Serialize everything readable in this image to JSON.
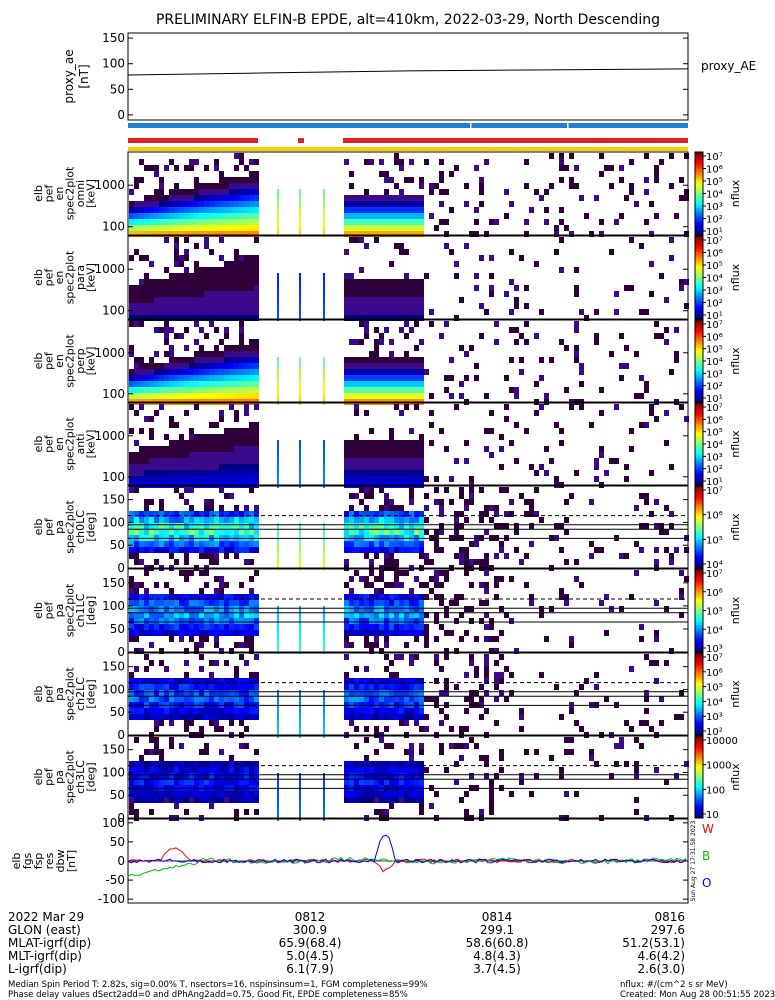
{
  "title": "PRELIMINARY ELFIN-B EPDE, alt=410km, 2022-03-29, North Descending",
  "colors": {
    "bar_blue": "#1e7fd6",
    "bar_red": "#e02020",
    "bar_yellow": "#f5d000",
    "bx_red": "#ff0000",
    "bx_green": "#00c000",
    "bx_blue": "#0000ff"
  },
  "chart_data": [
    {
      "type": "line",
      "panel": "proxy_ae",
      "ylabel_lines": [
        "proxy_ae",
        "[nT]"
      ],
      "right_label": "proxy_AE",
      "ylim": [
        -10,
        160
      ],
      "yticks": [
        "150",
        "100",
        "50",
        "0"
      ],
      "ytick_values": [
        150,
        100,
        50,
        0
      ],
      "x": [
        0,
        0.25,
        0.5,
        0.75,
        1
      ],
      "values": [
        78,
        82,
        86,
        88,
        90
      ]
    },
    {
      "type": "bar",
      "panel": "status_bars"
    },
    {
      "type": "heatmap",
      "panel": "en_omni",
      "ylabel_lines": [
        "elb",
        "pef",
        "en",
        "spec2plot",
        "omni",
        "[keV]"
      ],
      "scale": "log",
      "yticks": [
        "1000",
        "100"
      ],
      "cbar": {
        "label": "nflux",
        "ticks": [
          "10⁷",
          "10⁶",
          "10⁵",
          "10⁴",
          "10³",
          "10²",
          "10¹"
        ]
      }
    },
    {
      "type": "heatmap",
      "panel": "en_para",
      "ylabel_lines": [
        "elb",
        "pef",
        "en",
        "spec2plot",
        "para",
        "[keV]"
      ],
      "scale": "log",
      "yticks": [
        "1000",
        "100"
      ],
      "cbar": {
        "label": "nflux",
        "ticks": [
          "10⁷",
          "10⁶",
          "10⁵",
          "10⁴",
          "10³",
          "10²",
          "10¹"
        ]
      }
    },
    {
      "type": "heatmap",
      "panel": "en_perp",
      "ylabel_lines": [
        "elb",
        "pef",
        "en",
        "spec2plot",
        "perp",
        "[keV]"
      ],
      "scale": "log",
      "yticks": [
        "1000",
        "100"
      ],
      "cbar": {
        "label": "nflux",
        "ticks": [
          "10⁷",
          "10⁶",
          "10⁵",
          "10⁴",
          "10³",
          "10²",
          "10¹"
        ]
      }
    },
    {
      "type": "heatmap",
      "panel": "en_anti",
      "ylabel_lines": [
        "elb",
        "pef",
        "en",
        "spec2plot",
        "anti",
        "[keV]"
      ],
      "scale": "log",
      "yticks": [
        "1000",
        "100"
      ],
      "cbar": {
        "label": "nflux",
        "ticks": [
          "10⁷",
          "10⁶",
          "10⁵",
          "10⁴",
          "10³",
          "10²",
          "10¹"
        ]
      }
    },
    {
      "type": "heatmap",
      "panel": "pa_ch0",
      "ylabel_lines": [
        "elb",
        "pef",
        "pa",
        "spec2plot",
        "ch0LC",
        "[deg]"
      ],
      "ylim": [
        0,
        180
      ],
      "yticks": [
        "150",
        "100",
        "50",
        "0"
      ],
      "ytick_values": [
        150,
        100,
        50,
        0
      ],
      "cbar": {
        "label": "nflux",
        "ticks": [
          "10⁷",
          "10⁶",
          "10⁵",
          "10⁴"
        ]
      }
    },
    {
      "type": "heatmap",
      "panel": "pa_ch1",
      "ylabel_lines": [
        "elb",
        "pef",
        "pa",
        "spec2plot",
        "ch1LC",
        "[deg]"
      ],
      "ylim": [
        0,
        180
      ],
      "yticks": [
        "150",
        "100",
        "50",
        "0"
      ],
      "ytick_values": [
        150,
        100,
        50,
        0
      ],
      "cbar": {
        "label": "nflux",
        "ticks": [
          "10⁷",
          "10⁶",
          "10⁵",
          "10⁴",
          "10³"
        ]
      }
    },
    {
      "type": "heatmap",
      "panel": "pa_ch2",
      "ylabel_lines": [
        "elb",
        "pef",
        "pa",
        "spec2plot",
        "ch2LC",
        "[deg]"
      ],
      "ylim": [
        0,
        180
      ],
      "yticks": [
        "150",
        "100",
        "50",
        "0"
      ],
      "ytick_values": [
        150,
        100,
        50,
        0
      ],
      "cbar": {
        "label": "nflux",
        "ticks": [
          "10⁷",
          "10⁶",
          "10⁵",
          "10⁴",
          "10³",
          "10²"
        ]
      }
    },
    {
      "type": "heatmap",
      "panel": "pa_ch3",
      "ylabel_lines": [
        "elb",
        "pef",
        "pa",
        "spec2plot",
        "ch3LC",
        "[deg]"
      ],
      "ylim": [
        0,
        180
      ],
      "yticks": [
        "150",
        "100",
        "50",
        "0"
      ],
      "ytick_values": [
        150,
        100,
        50,
        0
      ],
      "cbar": {
        "label": "nflux",
        "ticks": [
          "10000",
          "1000",
          "100",
          "10"
        ]
      }
    },
    {
      "type": "line",
      "panel": "fgs",
      "ylabel_lines": [
        "elb",
        "fgs",
        "fsp",
        "res",
        "dbw",
        "[nT]"
      ],
      "ylim": [
        -110,
        110
      ],
      "yticks": [
        "100",
        "50",
        "0",
        "-50",
        "-100"
      ],
      "ytick_values": [
        100,
        50,
        0,
        -50,
        -100
      ],
      "series": [
        {
          "name": "W",
          "color": "#ff0000"
        },
        {
          "name": "B",
          "color": "#00c000"
        },
        {
          "name": "O",
          "color": "#0000ff"
        }
      ],
      "side_text": "Sun Aug 27 17:31:58 2023"
    }
  ],
  "x_axis": {
    "row_labels": [
      "2022 Mar 29",
      "GLON (east)",
      "MLAT-igrf(dip)",
      "MLT-igrf(dip)",
      "L-igrf(dip)"
    ],
    "columns": [
      {
        "time": "0812",
        "glon": "300.9",
        "mlat": "65.9(68.4)",
        "mlt": "5.0(4.5)",
        "l": "6.1(7.9)"
      },
      {
        "time": "0814",
        "glon": "299.1",
        "mlat": "58.6(60.8)",
        "mlt": "4.8(4.3)",
        "l": "3.7(4.5)"
      },
      {
        "time": "0816",
        "glon": "297.6",
        "mlat": "51.2(53.1)",
        "mlt": "4.6(4.2)",
        "l": "2.6(3.0)"
      }
    ]
  },
  "footer": {
    "left1": "Median Spin Period T: 2.82s, sig=0.00% T, nsectors=16, nspinsinsum=1, FGM completeness=99%",
    "left2": "Phase delay values dSect2add=0 and dPhAng2add=0.75, Good Fit, EPDE completeness=85%",
    "right1": "nflux: #/(cm^2 s sr MeV)",
    "right2": "Created: Mon Aug 28 00:51:55 2023"
  }
}
